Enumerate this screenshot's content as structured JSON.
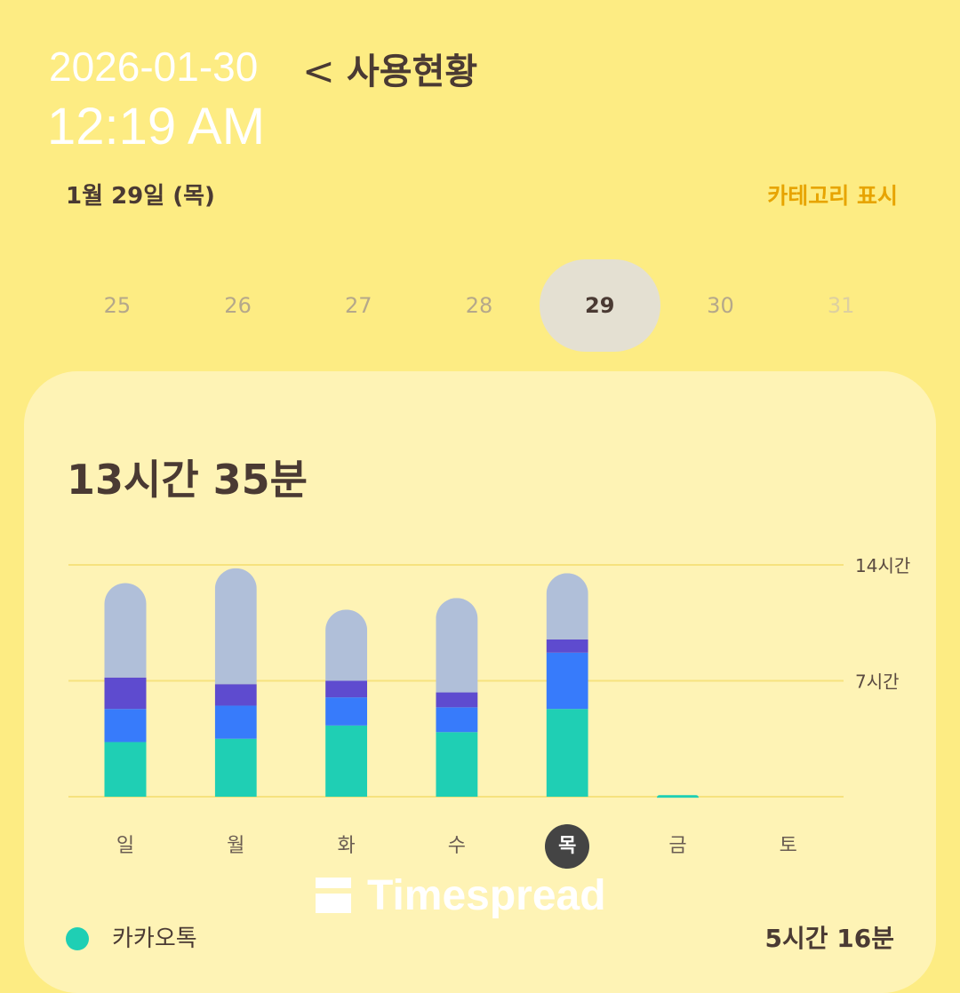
{
  "header": {
    "back": "<",
    "title": "사용현황",
    "overlay_date": "2026-01-30",
    "overlay_time": "12:19 AM"
  },
  "date_label": "1월 29일 (목)",
  "category_toggle": "카테고리 표시",
  "days": [
    "25",
    "26",
    "27",
    "28",
    "29",
    "30",
    "31"
  ],
  "selected_day": "29",
  "total": "13시간 35분",
  "watermark": "Timespread",
  "legend": [
    {
      "name": "카카오톡",
      "value": "5시간 16분",
      "color": "#1fcfb4"
    }
  ],
  "chart_data": {
    "type": "bar",
    "stacked": true,
    "categories": [
      "일",
      "월",
      "화",
      "수",
      "목",
      "금",
      "토"
    ],
    "selected": "목",
    "yticks": [
      "7시간",
      "14시간"
    ],
    "ylim": [
      0,
      14
    ],
    "unit": "hours",
    "grid": true,
    "series": [
      {
        "name": "카카오톡",
        "color": "#1fcfb4",
        "values": [
          3.3,
          3.5,
          4.3,
          3.9,
          5.3,
          0.1,
          0
        ]
      },
      {
        "color": "#377bfb",
        "values": [
          2.0,
          2.0,
          1.7,
          1.5,
          3.4,
          0,
          0
        ]
      },
      {
        "color": "#5e4bcf",
        "values": [
          1.9,
          1.3,
          1.0,
          0.9,
          0.8,
          0,
          0
        ]
      },
      {
        "color": "#b0bfd9",
        "values": [
          5.7,
          7.0,
          4.3,
          5.7,
          4.0,
          0,
          0
        ]
      }
    ]
  }
}
